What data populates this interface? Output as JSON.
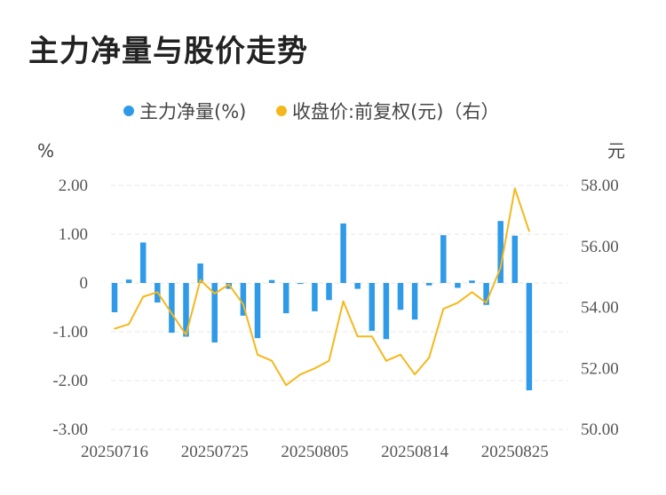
{
  "chart_data": {
    "type": "bar",
    "title": "主力净量与股价走势",
    "left_unit": "%",
    "right_unit": "元",
    "legend_position": "top",
    "grid": true,
    "x_tick_labels": [
      "20250716",
      "20250725",
      "20250805",
      "20250814",
      "20250825"
    ],
    "y_left": {
      "ticks": [
        "2.00",
        "1.00",
        "0",
        "-1.00",
        "-2.00",
        "-3.00"
      ],
      "range": [
        -3,
        2
      ]
    },
    "y_right": {
      "ticks": [
        "58.00",
        "56.00",
        "54.00",
        "52.00",
        "50.00"
      ],
      "range": [
        50,
        58
      ]
    },
    "categories": [
      "20250716",
      "20250717",
      "20250718",
      "20250721",
      "20250722",
      "20250723",
      "20250724",
      "20250725",
      "20250728",
      "20250729",
      "20250730",
      "20250731",
      "20250801",
      "20250804",
      "20250805",
      "20250806",
      "20250807",
      "20250808",
      "20250811",
      "20250812",
      "20250813",
      "20250814",
      "20250815",
      "20250818",
      "20250819",
      "20250820",
      "20250821",
      "20250822",
      "20250825",
      "20250826"
    ],
    "series": [
      {
        "name": "主力净量(%)",
        "type": "bar",
        "axis": "left",
        "color": "#2f9ae8",
        "values": [
          -0.6,
          0.07,
          0.83,
          -0.4,
          -1.02,
          -1.1,
          0.4,
          -1.22,
          -0.12,
          -0.67,
          -1.13,
          0.06,
          -0.62,
          -0.02,
          -0.58,
          -0.35,
          1.22,
          -0.12,
          -0.98,
          -1.15,
          -0.55,
          -0.75,
          -0.05,
          0.98,
          -0.1,
          0.05,
          -0.45,
          1.27,
          0.97,
          -2.2
        ]
      },
      {
        "name": "收盘价:前复权(元)（右）",
        "type": "line",
        "axis": "right",
        "color": "#f5b81c",
        "values": [
          53.3,
          53.45,
          54.35,
          54.5,
          53.8,
          53.1,
          54.9,
          54.45,
          54.75,
          54.1,
          52.45,
          52.25,
          51.45,
          51.8,
          52.0,
          52.25,
          54.2,
          53.05,
          53.05,
          52.25,
          52.45,
          51.8,
          52.35,
          53.95,
          54.15,
          54.5,
          54.15,
          55.3,
          57.9,
          56.5
        ]
      }
    ]
  }
}
